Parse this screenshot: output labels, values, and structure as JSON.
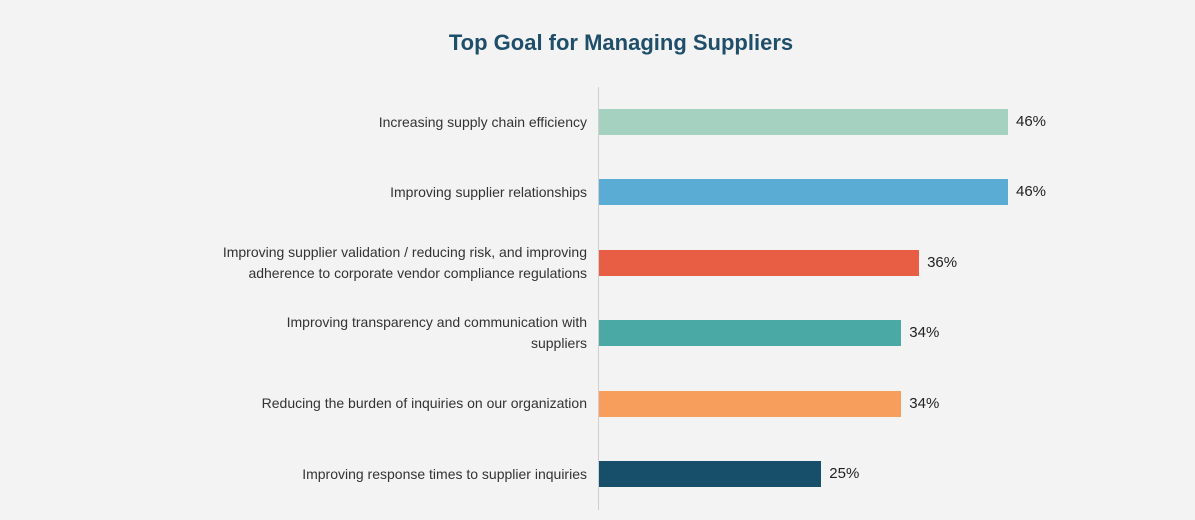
{
  "chart_data": {
    "type": "bar",
    "orientation": "horizontal",
    "title": "Top Goal for Managing Suppliers",
    "categories": [
      "Increasing supply chain efficiency",
      "Improving supplier relationships",
      "Improving supplier validation / reducing risk, and improving\nadherence to corporate vendor compliance regulations",
      "Improving transparency and communication with\nsuppliers",
      "Reducing the burden of inquiries on our organization",
      "Improving response times to supplier inquiries"
    ],
    "values": [
      46,
      46,
      36,
      34,
      34,
      25
    ],
    "value_labels": [
      "46%",
      "46%",
      "36%",
      "34%",
      "34%",
      "25%"
    ],
    "colors": [
      "#a5d1c1",
      "#5bacd5",
      "#e85e45",
      "#4aa8a5",
      "#f89e5c",
      "#174e69"
    ]
  }
}
